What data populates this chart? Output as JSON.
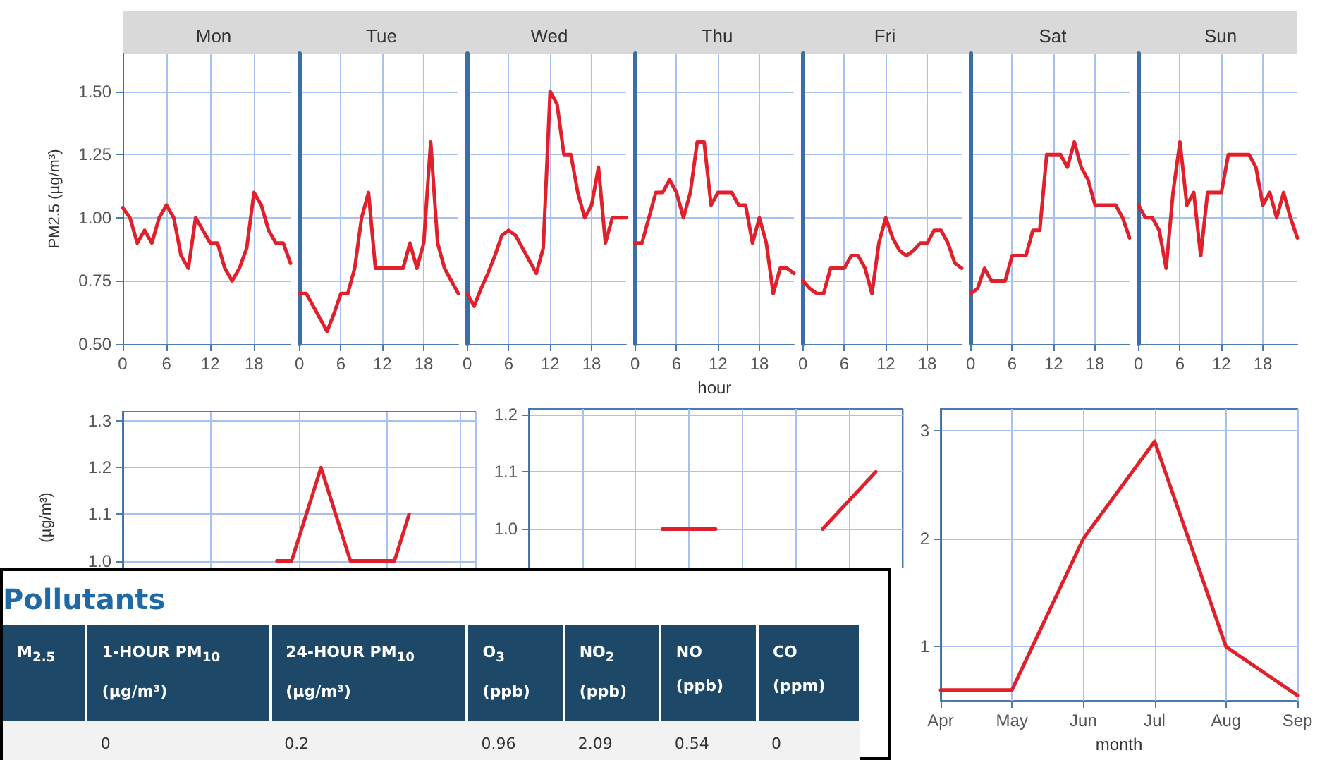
{
  "chart_data": [
    {
      "type": "line",
      "title": "Mon",
      "ylabel": "PM2.5 (µg/m³)",
      "color": "#e0202a",
      "marker": "none",
      "grid": true,
      "x": [
        0,
        1,
        2,
        3,
        4,
        5,
        6,
        7,
        8,
        9,
        10,
        11,
        12,
        13,
        14,
        15,
        16,
        17,
        18,
        19,
        20,
        21,
        22,
        23
      ],
      "values": [
        1.04,
        1.0,
        0.9,
        0.95,
        0.9,
        1.0,
        1.05,
        1.0,
        0.85,
        0.8,
        1.0,
        0.95,
        0.9,
        0.9,
        0.8,
        0.75,
        0.8,
        0.88,
        1.1,
        1.05,
        0.95,
        0.9,
        0.9,
        0.82
      ],
      "xlim": [
        0,
        23
      ],
      "xticks": [
        0,
        6,
        12,
        18
      ],
      "ylim": [
        0.5,
        1.65
      ],
      "yticks": [
        {
          "value": 0.5,
          "label": "0.50"
        },
        {
          "value": 0.75,
          "label": "0.75"
        },
        {
          "value": 1.0,
          "label": "1.00"
        },
        {
          "value": 1.25,
          "label": "1.25"
        },
        {
          "value": 1.5,
          "label": "1.50"
        }
      ]
    },
    {
      "type": "line",
      "title": "Tue",
      "color": "#e0202a",
      "marker": "none",
      "grid": true,
      "tick_labels": "x",
      "x": [
        0,
        1,
        2,
        3,
        4,
        5,
        6,
        7,
        8,
        9,
        10,
        11,
        12,
        13,
        14,
        15,
        16,
        17,
        18,
        19,
        20,
        21,
        22,
        23
      ],
      "values": [
        0.7,
        0.7,
        0.65,
        0.6,
        0.55,
        0.62,
        0.7,
        0.7,
        0.8,
        1.0,
        1.1,
        0.8,
        0.8,
        0.8,
        0.8,
        0.8,
        0.9,
        0.8,
        0.9,
        1.3,
        0.9,
        0.8,
        0.75,
        0.7
      ],
      "xlim": [
        0,
        23
      ],
      "xticks": [
        0,
        6,
        12,
        18
      ],
      "ylim": [
        0.5,
        1.65
      ],
      "yticks": [
        0.5,
        0.75,
        1.0,
        1.25,
        1.5
      ]
    },
    {
      "type": "line",
      "title": "Wed",
      "color": "#e0202a",
      "marker": "none",
      "grid": true,
      "tick_labels": "x",
      "x": [
        0,
        1,
        2,
        3,
        4,
        5,
        6,
        7,
        8,
        9,
        10,
        11,
        12,
        13,
        14,
        15,
        16,
        17,
        18,
        19,
        20,
        21,
        22,
        23
      ],
      "values": [
        0.7,
        0.65,
        0.72,
        0.78,
        0.85,
        0.93,
        0.95,
        0.93,
        0.88,
        0.83,
        0.78,
        0.88,
        1.5,
        1.45,
        1.25,
        1.25,
        1.1,
        1.0,
        1.05,
        1.2,
        0.9,
        1.0,
        1.0,
        1.0
      ],
      "xlim": [
        0,
        23
      ],
      "xticks": [
        0,
        6,
        12,
        18
      ],
      "ylim": [
        0.5,
        1.65
      ],
      "yticks": [
        0.5,
        0.75,
        1.0,
        1.25,
        1.5
      ]
    },
    {
      "type": "line",
      "title": "Thu",
      "xlabel": "hour",
      "color": "#e0202a",
      "marker": "none",
      "grid": true,
      "tick_labels": "x",
      "x": [
        0,
        1,
        2,
        3,
        4,
        5,
        6,
        7,
        8,
        9,
        10,
        11,
        12,
        13,
        14,
        15,
        16,
        17,
        18,
        19,
        20,
        21,
        22,
        23
      ],
      "values": [
        0.9,
        0.9,
        1.0,
        1.1,
        1.1,
        1.15,
        1.1,
        1.0,
        1.1,
        1.3,
        1.3,
        1.05,
        1.1,
        1.1,
        1.1,
        1.05,
        1.05,
        0.9,
        1.0,
        0.9,
        0.7,
        0.8,
        0.8,
        0.78
      ],
      "xlim": [
        0,
        23
      ],
      "xticks": [
        0,
        6,
        12,
        18
      ],
      "ylim": [
        0.5,
        1.65
      ],
      "yticks": [
        0.5,
        0.75,
        1.0,
        1.25,
        1.5
      ]
    },
    {
      "type": "line",
      "title": "Fri",
      "color": "#e0202a",
      "marker": "none",
      "grid": true,
      "tick_labels": "x",
      "x": [
        0,
        1,
        2,
        3,
        4,
        5,
        6,
        7,
        8,
        9,
        10,
        11,
        12,
        13,
        14,
        15,
        16,
        17,
        18,
        19,
        20,
        21,
        22,
        23
      ],
      "values": [
        0.75,
        0.72,
        0.7,
        0.7,
        0.8,
        0.8,
        0.8,
        0.85,
        0.85,
        0.8,
        0.7,
        0.9,
        1.0,
        0.92,
        0.87,
        0.85,
        0.87,
        0.9,
        0.9,
        0.95,
        0.95,
        0.9,
        0.82,
        0.8
      ],
      "xlim": [
        0,
        23
      ],
      "xticks": [
        0,
        6,
        12,
        18
      ],
      "ylim": [
        0.5,
        1.65
      ],
      "yticks": [
        0.5,
        0.75,
        1.0,
        1.25,
        1.5
      ]
    },
    {
      "type": "line",
      "title": "Sat",
      "color": "#e0202a",
      "marker": "none",
      "grid": true,
      "tick_labels": "x",
      "x": [
        0,
        1,
        2,
        3,
        4,
        5,
        6,
        7,
        8,
        9,
        10,
        11,
        12,
        13,
        14,
        15,
        16,
        17,
        18,
        19,
        20,
        21,
        22,
        23
      ],
      "values": [
        0.7,
        0.72,
        0.8,
        0.75,
        0.75,
        0.75,
        0.85,
        0.85,
        0.85,
        0.95,
        0.95,
        1.25,
        1.25,
        1.25,
        1.2,
        1.3,
        1.2,
        1.15,
        1.05,
        1.05,
        1.05,
        1.05,
        1.0,
        0.92
      ],
      "xlim": [
        0,
        23
      ],
      "xticks": [
        0,
        6,
        12,
        18
      ],
      "ylim": [
        0.5,
        1.65
      ],
      "yticks": [
        0.5,
        0.75,
        1.0,
        1.25,
        1.5
      ]
    },
    {
      "type": "line",
      "title": "Sun",
      "color": "#e0202a",
      "marker": "none",
      "grid": true,
      "tick_labels": "x",
      "x": [
        0,
        1,
        2,
        3,
        4,
        5,
        6,
        7,
        8,
        9,
        10,
        11,
        12,
        13,
        14,
        15,
        16,
        17,
        18,
        19,
        20,
        21,
        22,
        23
      ],
      "values": [
        1.05,
        1.0,
        1.0,
        0.95,
        0.8,
        1.1,
        1.3,
        1.05,
        1.1,
        0.85,
        1.1,
        1.1,
        1.1,
        1.25,
        1.25,
        1.25,
        1.25,
        1.2,
        1.05,
        1.1,
        1.0,
        1.1,
        1.0,
        0.92
      ],
      "xlim": [
        0,
        23
      ],
      "xticks": [
        0,
        6,
        12,
        18
      ],
      "ylim": [
        0.5,
        1.65
      ],
      "yticks": [
        0.5,
        0.75,
        1.0,
        1.25,
        1.5
      ]
    },
    {
      "type": "line",
      "ylabel": "(µg/m³)",
      "color": "#e0202a",
      "marker": "none",
      "grid": true,
      "categories": [
        null,
        null,
        null,
        null,
        null,
        null,
        null,
        null,
        null,
        null,
        null,
        null,
        null,
        null,
        null,
        null,
        null,
        null,
        null,
        null,
        null,
        null,
        null,
        null
      ],
      "values": [
        null,
        null,
        null,
        null,
        null,
        null,
        null,
        null,
        null,
        null,
        1.0,
        1.0,
        1.1,
        1.2,
        1.1,
        1.0,
        1.0,
        1.0,
        1.0,
        1.1,
        null,
        null,
        null,
        null
      ],
      "ylim": [
        0.7,
        1.32
      ],
      "yticks": [
        {
          "value": 1.0,
          "label": "1.0"
        },
        1.1,
        1.2,
        1.3
      ]
    },
    {
      "type": "line",
      "color": "#e0202a",
      "marker": "none",
      "grid": true,
      "categories": [
        null,
        null,
        null,
        null,
        null,
        null,
        null
      ],
      "values": [
        null,
        null,
        1.0,
        1.0,
        null,
        1.0,
        1.1
      ],
      "ylim": [
        0.7,
        1.21
      ],
      "yticks": [
        {
          "value": 1.0,
          "label": "1.0"
        },
        1.1,
        1.2
      ]
    },
    {
      "type": "line",
      "xlabel": "month",
      "color": "#e0202a",
      "marker": "none",
      "grid": true,
      "categories": [
        "Apr",
        "May",
        "Jun",
        "Jul",
        "Aug",
        "Sep"
      ],
      "values": [
        0.6,
        0.6,
        2.0,
        2.9,
        1.0,
        0.55
      ],
      "ylim": [
        0.5,
        3.2
      ],
      "yticks": [
        1,
        2,
        3
      ]
    },
    {
      "type": "other",
      "title": "Pollutants",
      "data_labels": true,
      "categories": [
        "M$_{2.5}$",
        "1-HOUR PM$_{10}$\n(µg/m³)",
        "24-HOUR PM$_{10}$\n(µg/m³)",
        "O$_{3}$\n(ppb)",
        "NO$_{2}$\n(ppb)",
        "NO\n(ppb)",
        "CO\n(ppm)"
      ],
      "values": [
        null,
        0,
        0.2,
        0.96,
        2.09,
        0.54,
        0
      ]
    }
  ]
}
